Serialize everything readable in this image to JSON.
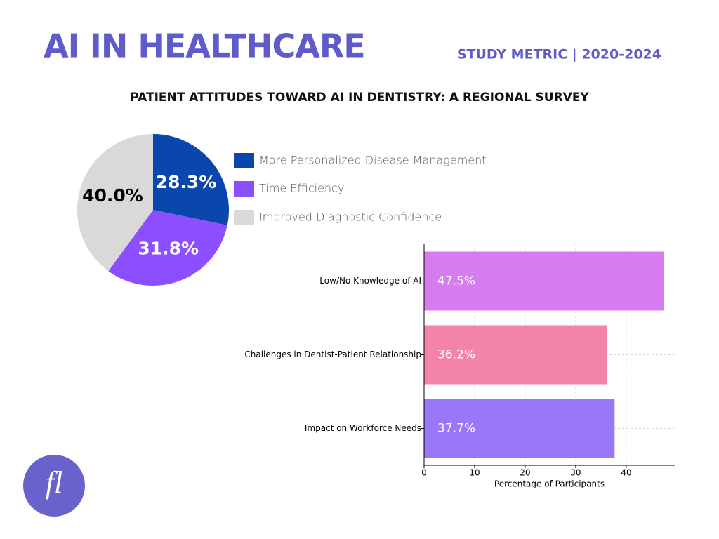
{
  "header": {
    "title": "AI IN HEALTHCARE",
    "metric": "STUDY METRIC |  2020-2024",
    "subtitle": "PATIENT ATTITUDES TOWARD AI IN DENTISTRY: A REGIONAL SURVEY",
    "logo": "fl"
  },
  "chart_data": [
    {
      "type": "pie",
      "categories": [
        "More Personalized Disease Management",
        "Time Efficiency",
        "Improved Diagnostic Confidence"
      ],
      "values": [
        28.3,
        31.8,
        40.0
      ],
      "value_labels": [
        "28.3%",
        "31.8%",
        "40.0%"
      ],
      "colors": [
        "#0a47ad",
        "#8c4fff",
        "#d9d9d9"
      ],
      "label_colors": [
        "#ffffff",
        "#ffffff",
        "#000000"
      ],
      "legend": "right"
    },
    {
      "type": "hbar",
      "categories": [
        "Low/No Knowledge of AI",
        "Challenges in Dentist-Patient Relationship",
        "Impact on Workforce Needs"
      ],
      "values": [
        47.5,
        36.2,
        37.7
      ],
      "value_labels": [
        "47.5%",
        "36.2%",
        "37.7%"
      ],
      "colors": [
        "#d77bf1",
        "#f483ac",
        "#9a77f8"
      ],
      "xlabel": "Percentage of Participants",
      "xlim": [
        0,
        49.6
      ],
      "xticks": [
        0,
        10,
        20,
        30,
        40
      ],
      "grid": true
    }
  ]
}
